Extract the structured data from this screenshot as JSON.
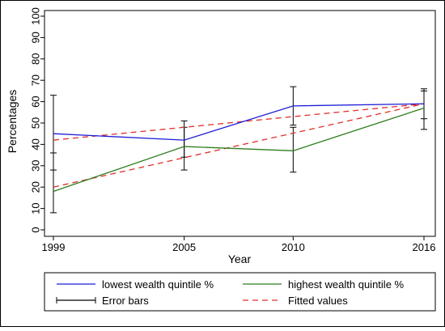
{
  "chart_data": {
    "type": "line",
    "xlabel": "Year",
    "ylabel": "Percentages",
    "xlim": [
      1999,
      2016
    ],
    "ylim": [
      0,
      100
    ],
    "x_ticks": [
      1999,
      2005,
      2010,
      2016
    ],
    "y_ticks": [
      0,
      10,
      20,
      30,
      40,
      50,
      60,
      70,
      80,
      90,
      100
    ],
    "grid": false,
    "legend_position": "bottom",
    "x": [
      1999,
      2005,
      2010,
      2016
    ],
    "series": [
      {
        "name": "lowest wealth quintile %",
        "kind": "line",
        "color": "#1f1fd6",
        "values": [
          45,
          42,
          58,
          59
        ]
      },
      {
        "name": "highest wealth quintile %",
        "kind": "line",
        "color": "#2e7d1e",
        "values": [
          18,
          39,
          37,
          57
        ]
      },
      {
        "name": "Error bars",
        "kind": "errorbar",
        "color": "#000000",
        "intervals": [
          {
            "x": 1999,
            "low": 28,
            "high": 63
          },
          {
            "x": 1999,
            "low": 8,
            "high": 36
          },
          {
            "x": 2005,
            "low": 34,
            "high": 51
          },
          {
            "x": 2005,
            "low": 28,
            "high": 48
          },
          {
            "x": 2010,
            "low": 49,
            "high": 67
          },
          {
            "x": 2010,
            "low": 27,
            "high": 48
          },
          {
            "x": 2016,
            "low": 52,
            "high": 66
          },
          {
            "x": 2016,
            "low": 47,
            "high": 65
          }
        ]
      },
      {
        "name": "Fitted values",
        "kind": "dashed",
        "color": "#e0302a",
        "lines": [
          [
            42,
            59
          ],
          [
            20,
            59
          ]
        ]
      }
    ]
  }
}
